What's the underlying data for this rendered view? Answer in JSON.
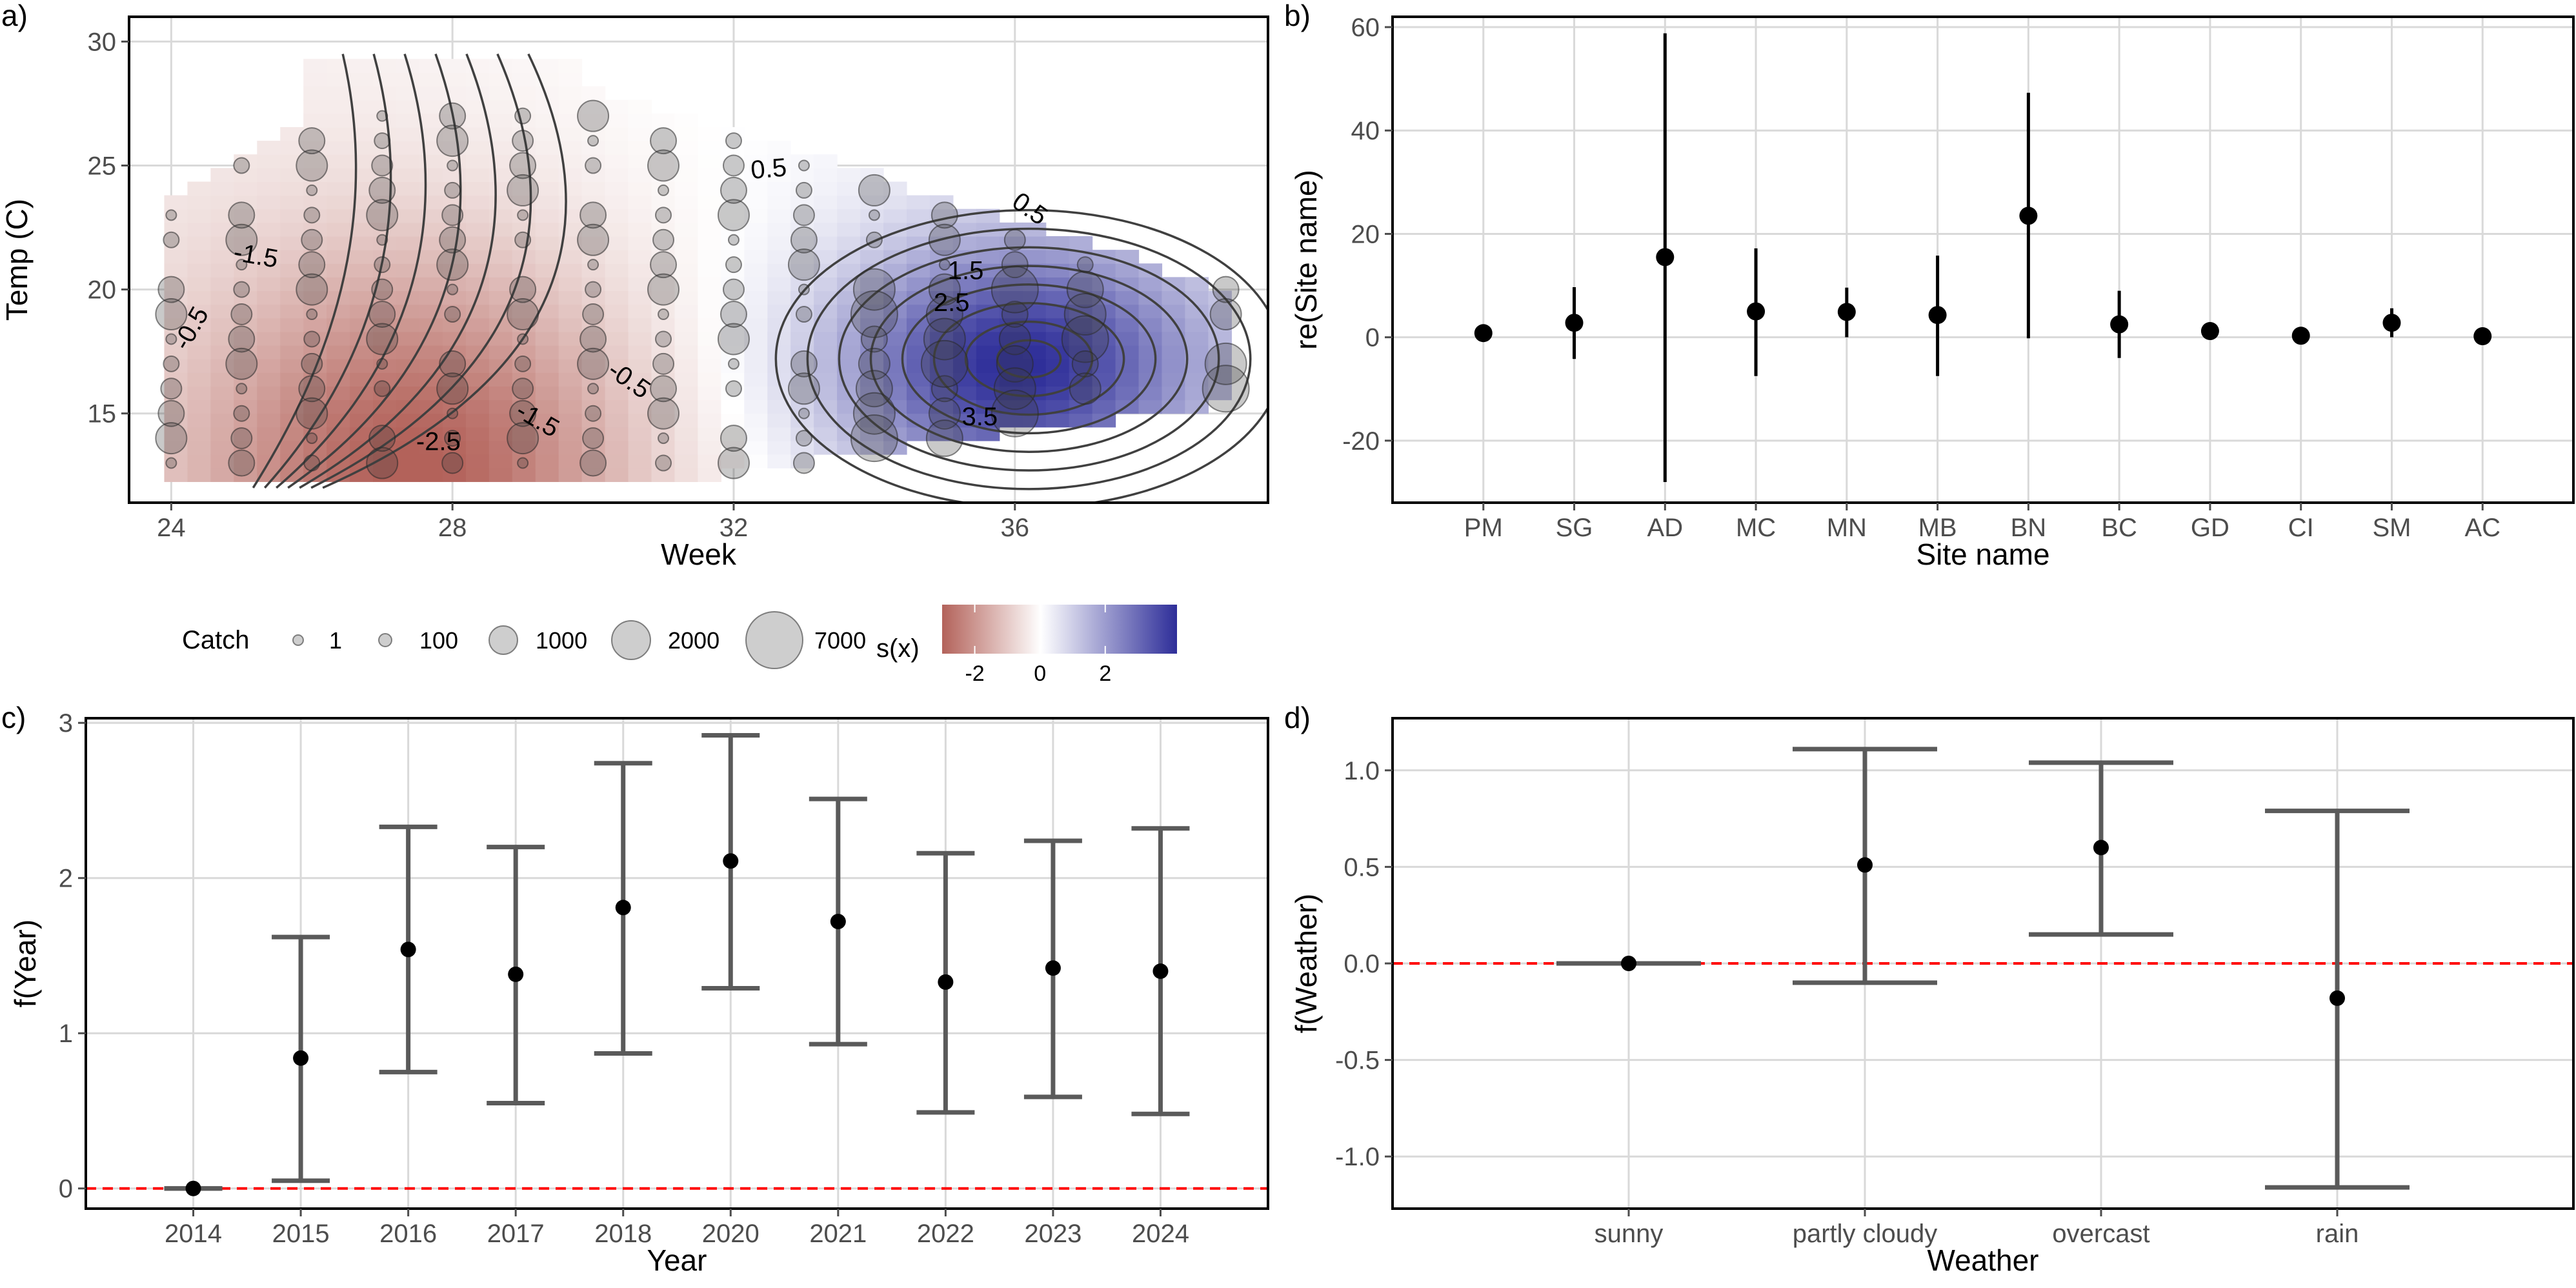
{
  "chart_data": [
    {
      "type": "heatmap",
      "panel_label": "a)",
      "xlabel": "Week",
      "ylabel": "Temp (C)",
      "xlim": [
        23.4,
        39.6
      ],
      "ylim": [
        11.4,
        31.0
      ],
      "x_ticks": [
        24,
        28,
        32,
        36
      ],
      "y_ticks": [
        15,
        20,
        25,
        30
      ],
      "surface": {
        "legend_title": "s(x)",
        "color_ticks": [
          -2,
          0,
          2
        ],
        "color_range": [
          -3.0,
          4.2
        ],
        "colors": {
          "low": "#b3625a",
          "mid": "#ffffff",
          "high": "#2e2e99"
        },
        "peak_low": {
          "week": 27.5,
          "temp": 12.5,
          "value": -2.9
        },
        "peak_high": {
          "week": 36.0,
          "temp": 17.0,
          "value": 4.0
        }
      },
      "contour_labels": [
        {
          "text": "-1.5",
          "week": 25.2,
          "temp": 21.3,
          "rotate": 10
        },
        {
          "text": "-0.5",
          "week": 24.3,
          "temp": 18.4,
          "rotate": -60
        },
        {
          "text": "-2.5",
          "week": 27.8,
          "temp": 13.8,
          "rotate": 0
        },
        {
          "text": "-1.5",
          "week": 29.2,
          "temp": 14.7,
          "rotate": 30
        },
        {
          "text": "-0.5",
          "week": 30.5,
          "temp": 16.3,
          "rotate": 35
        },
        {
          "text": "0.5",
          "week": 32.5,
          "temp": 24.8,
          "rotate": -5
        },
        {
          "text": "0.5",
          "week": 36.2,
          "temp": 23.2,
          "rotate": 35
        },
        {
          "text": "1.5",
          "week": 35.3,
          "temp": 20.7,
          "rotate": 0
        },
        {
          "text": "2.5",
          "week": 35.1,
          "temp": 19.4,
          "rotate": 0
        },
        {
          "text": "3.5",
          "week": 35.5,
          "temp": 14.8,
          "rotate": 0
        }
      ],
      "catch_legend": {
        "title": "Catch",
        "sizes": [
          1,
          100,
          1000,
          2000,
          7000
        ]
      }
    },
    {
      "type": "scatter",
      "panel_label": "b)",
      "xlabel": "Site name",
      "ylabel": "re(Site name)",
      "ylim": [
        -32,
        62
      ],
      "y_ticks": [
        -20,
        0,
        20,
        40,
        60
      ],
      "categories": [
        "PM",
        "SG",
        "AD",
        "MC",
        "MN",
        "MB",
        "BN",
        "BC",
        "GD",
        "CI",
        "SM",
        "AC"
      ],
      "values": [
        0.8,
        2.8,
        15.5,
        5.0,
        4.9,
        4.3,
        23.5,
        2.5,
        1.2,
        0.3,
        2.8,
        0.2
      ],
      "lower": [
        0.4,
        -4.2,
        -28.0,
        -7.5,
        0.0,
        -7.5,
        -0.2,
        -4.0,
        0.6,
        -0.1,
        0.0,
        -0.1
      ],
      "upper": [
        1.2,
        9.7,
        58.8,
        17.2,
        9.6,
        15.8,
        47.3,
        9.0,
        1.8,
        0.7,
        5.6,
        0.5
      ]
    },
    {
      "type": "scatter",
      "panel_label": "c)",
      "xlabel": "Year",
      "ylabel": "f(Year)",
      "ylim": [
        -0.13,
        3.03
      ],
      "y_ticks": [
        0,
        1,
        2,
        3
      ],
      "reference_line": 0,
      "categories": [
        "2014",
        "2015",
        "2016",
        "2017",
        "2018",
        "2020",
        "2021",
        "2022",
        "2023",
        "2024"
      ],
      "values": [
        0.0,
        0.84,
        1.54,
        1.38,
        1.81,
        2.11,
        1.72,
        1.33,
        1.42,
        1.4
      ],
      "lower": [
        0.0,
        0.05,
        0.75,
        0.55,
        0.87,
        1.29,
        0.93,
        0.49,
        0.59,
        0.48
      ],
      "upper": [
        0.0,
        1.62,
        2.33,
        2.2,
        2.74,
        2.92,
        2.51,
        2.16,
        2.24,
        2.32
      ]
    },
    {
      "type": "scatter",
      "panel_label": "d)",
      "xlabel": "Weather",
      "ylabel": "f(Weather)",
      "ylim": [
        -1.27,
        1.27
      ],
      "y_ticks": [
        -1.0,
        -0.5,
        0.0,
        0.5,
        1.0
      ],
      "y_tick_labels": [
        "-1.0",
        "-0.5",
        "0.0",
        "0.5",
        "1.0"
      ],
      "reference_line": 0,
      "categories": [
        "sunny",
        "partly cloudy",
        "overcast",
        "rain"
      ],
      "values": [
        0.0,
        0.51,
        0.6,
        -0.18
      ],
      "lower": [
        0.0,
        -0.1,
        0.15,
        -1.16
      ],
      "upper": [
        0.0,
        1.11,
        1.04,
        0.79
      ]
    }
  ]
}
